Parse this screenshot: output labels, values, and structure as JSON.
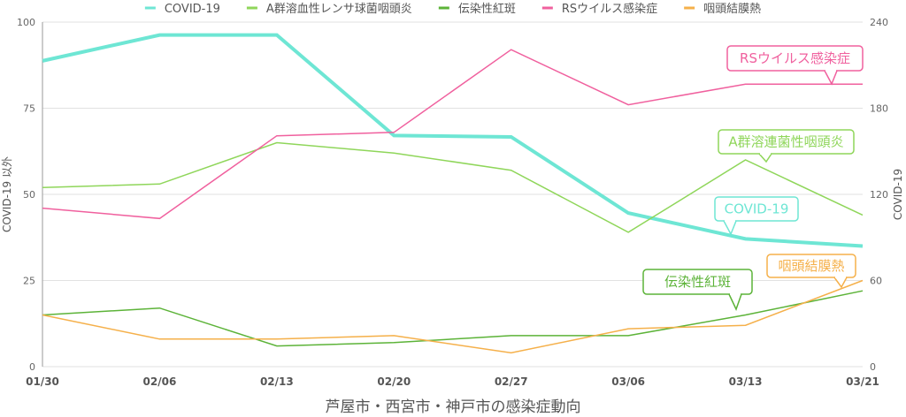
{
  "chart_data": {
    "type": "line",
    "title": "芦屋市・西宮市・神戸市の感染症動向",
    "ylabel_left": "COVID-19 以外",
    "ylabel_right": "COVID-19",
    "ylim_left": [
      0,
      100
    ],
    "ylim_right": [
      0,
      240
    ],
    "yticks_left": [
      0,
      25,
      50,
      75,
      100
    ],
    "yticks_right": [
      0,
      60,
      120,
      180,
      240
    ],
    "categories": [
      "01/30",
      "02/06",
      "02/13",
      "02/20",
      "02/27",
      "03/06",
      "03/13",
      "03/21"
    ],
    "grid": true,
    "legend_position": "top",
    "series": [
      {
        "name": "COVID-19",
        "axis": "right",
        "color": "#6ee6d4",
        "width": 4,
        "values": [
          213,
          231,
          231,
          161,
          160,
          107,
          89,
          84
        ],
        "annotation": "COVID-19"
      },
      {
        "name": "A群溶血性レンサ球菌咽頭炎",
        "axis": "left",
        "color": "#8fd65a",
        "width": 1.5,
        "values": [
          52,
          53,
          65,
          62,
          57,
          39,
          60,
          44
        ],
        "annotation": "A群溶連菌性咽頭炎"
      },
      {
        "name": "伝染性紅斑",
        "axis": "left",
        "color": "#5cb338",
        "width": 1.5,
        "values": [
          15,
          17,
          6,
          7,
          9,
          9,
          15,
          22
        ],
        "annotation": "伝染性紅斑"
      },
      {
        "name": "RSウイルス感染症",
        "axis": "left",
        "color": "#f0609e",
        "width": 1.5,
        "values": [
          46,
          43,
          67,
          68,
          92,
          76,
          82,
          82
        ],
        "annotation": "RSウイルス感染症"
      },
      {
        "name": "咽頭結膜熱",
        "axis": "left",
        "color": "#f5b04a",
        "width": 1.5,
        "values": [
          15,
          8,
          8,
          9,
          4,
          11,
          12,
          25
        ],
        "annotation": "咽頭結膜熱"
      }
    ]
  }
}
